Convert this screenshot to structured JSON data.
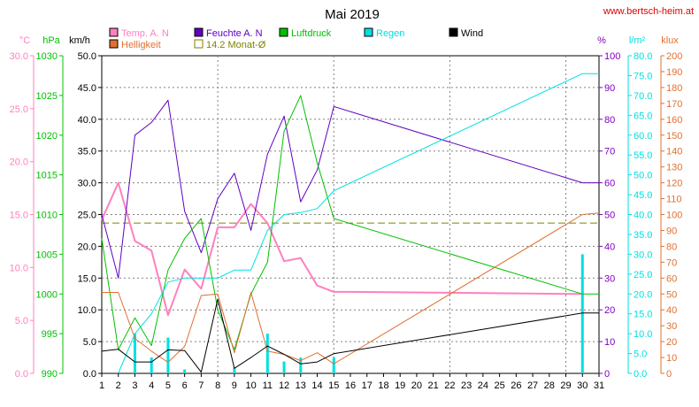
{
  "title": "Mai 2019",
  "website": "www.bertsch-heim.at",
  "chart_data": {
    "type": "line",
    "title": "Mai 2019",
    "x": [
      1,
      2,
      3,
      4,
      5,
      6,
      7,
      8,
      9,
      10,
      11,
      12,
      13,
      14,
      15,
      16,
      17,
      18,
      19,
      20,
      21,
      22,
      23,
      24,
      25,
      26,
      27,
      28,
      29,
      30,
      31
    ],
    "xlim": [
      1,
      31
    ],
    "grid": true,
    "legend_position": "top",
    "avg_label": "14.2 Monat-Ø",
    "avg_value": 14.2,
    "axes": [
      {
        "id": "temp",
        "unit": "°C",
        "range": [
          0,
          30
        ],
        "step": 5,
        "decimals": 1,
        "color": "#ff80c0"
      },
      {
        "id": "press",
        "unit": "hPa",
        "range": [
          990,
          1030
        ],
        "step": 5,
        "decimals": 0,
        "color": "#00c000"
      },
      {
        "id": "wind",
        "unit": "km/h",
        "range": [
          0,
          50
        ],
        "step": 5,
        "decimals": 1,
        "color": "#000000"
      },
      {
        "id": "hum",
        "unit": "%",
        "range": [
          0,
          100
        ],
        "step": 10,
        "decimals": 0,
        "color": "#8000c0"
      },
      {
        "id": "rain",
        "unit": "l/m²",
        "range": [
          0,
          80
        ],
        "step": 5,
        "decimals": 1,
        "color": "#00e0e0"
      },
      {
        "id": "lux",
        "unit": "klux",
        "range": [
          0,
          200
        ],
        "step": 10,
        "decimals": 0,
        "color": "#e07030"
      }
    ],
    "series": [
      {
        "name": "Temp. A. N",
        "axis": "temp",
        "color": "#ff80c0",
        "width": 2,
        "x": [
          1,
          2,
          3,
          4,
          5,
          6,
          7,
          8,
          9,
          10,
          11,
          12,
          13,
          14,
          15,
          16,
          30
        ],
        "y": [
          14.5,
          18.0,
          12.5,
          11.6,
          5.5,
          9.8,
          8.0,
          13.8,
          13.8,
          16.0,
          14.2,
          10.6,
          10.9,
          8.3,
          7.7,
          7.7,
          7.5
        ]
      },
      {
        "name": "Feuchte A. N",
        "axis": "hum",
        "color": "#6000c0",
        "width": 1,
        "x": [
          1,
          2,
          3,
          4,
          5,
          6,
          7,
          8,
          9,
          10,
          11,
          12,
          13,
          14,
          15,
          30,
          31
        ],
        "y": [
          50,
          30,
          75,
          79,
          86,
          51,
          38,
          55,
          63,
          45,
          69,
          81,
          54,
          64,
          84,
          60,
          60
        ]
      },
      {
        "name": "Luftdruck",
        "axis": "press",
        "color": "#00c000",
        "width": 1,
        "x": [
          1,
          2,
          3,
          4,
          5,
          6,
          7,
          8,
          9,
          10,
          11,
          12,
          13,
          14,
          15,
          30,
          31
        ],
        "y": [
          1007,
          993,
          997,
          993.5,
          1003,
          1007,
          1009.5,
          998,
          993,
          1000,
          1004,
          1020.5,
          1025,
          1016.5,
          1009.5,
          1000,
          1000
        ]
      },
      {
        "name": "Regen",
        "axis": "rain",
        "color": "#00e0e0",
        "width": 1,
        "x": [
          2,
          3,
          4,
          5,
          6,
          7,
          8,
          9,
          10,
          11,
          12,
          13,
          14,
          15,
          30,
          31
        ],
        "y": [
          0,
          10,
          15,
          23,
          24,
          24,
          24,
          26,
          26,
          36,
          40,
          40.5,
          41.5,
          46,
          75.5,
          75.5
        ]
      },
      {
        "name": "Helligkeit",
        "axis": "lux",
        "color": "#e07030",
        "width": 1,
        "x": [
          1,
          2,
          3,
          4,
          5,
          6,
          7,
          8,
          9,
          10,
          11,
          12,
          13,
          14,
          15,
          30,
          31
        ],
        "y": [
          51,
          51,
          22,
          14,
          7,
          17,
          49,
          50,
          13,
          51,
          14,
          12,
          8,
          13,
          6,
          100,
          101
        ]
      },
      {
        "name": "Wind",
        "axis": "wind",
        "color": "#000000",
        "width": 1,
        "x": [
          1,
          2,
          3,
          4,
          5,
          6,
          7,
          8,
          9,
          10,
          11,
          12,
          13,
          14,
          15,
          30,
          31
        ],
        "y": [
          3.5,
          3.8,
          1.8,
          1.8,
          3.7,
          3.6,
          0.2,
          11.7,
          0.8,
          2.5,
          4.3,
          3.0,
          1.5,
          1.8,
          3.1,
          9.5,
          9.5
        ]
      }
    ],
    "bars": {
      "name": "Regen",
      "axis": "rain",
      "color": "#00e0e0",
      "x": [
        3,
        4,
        5,
        6,
        9,
        11,
        12,
        13,
        15,
        30
      ],
      "values": [
        10,
        4,
        9,
        1,
        1.5,
        10,
        3,
        4,
        4,
        30
      ]
    }
  }
}
